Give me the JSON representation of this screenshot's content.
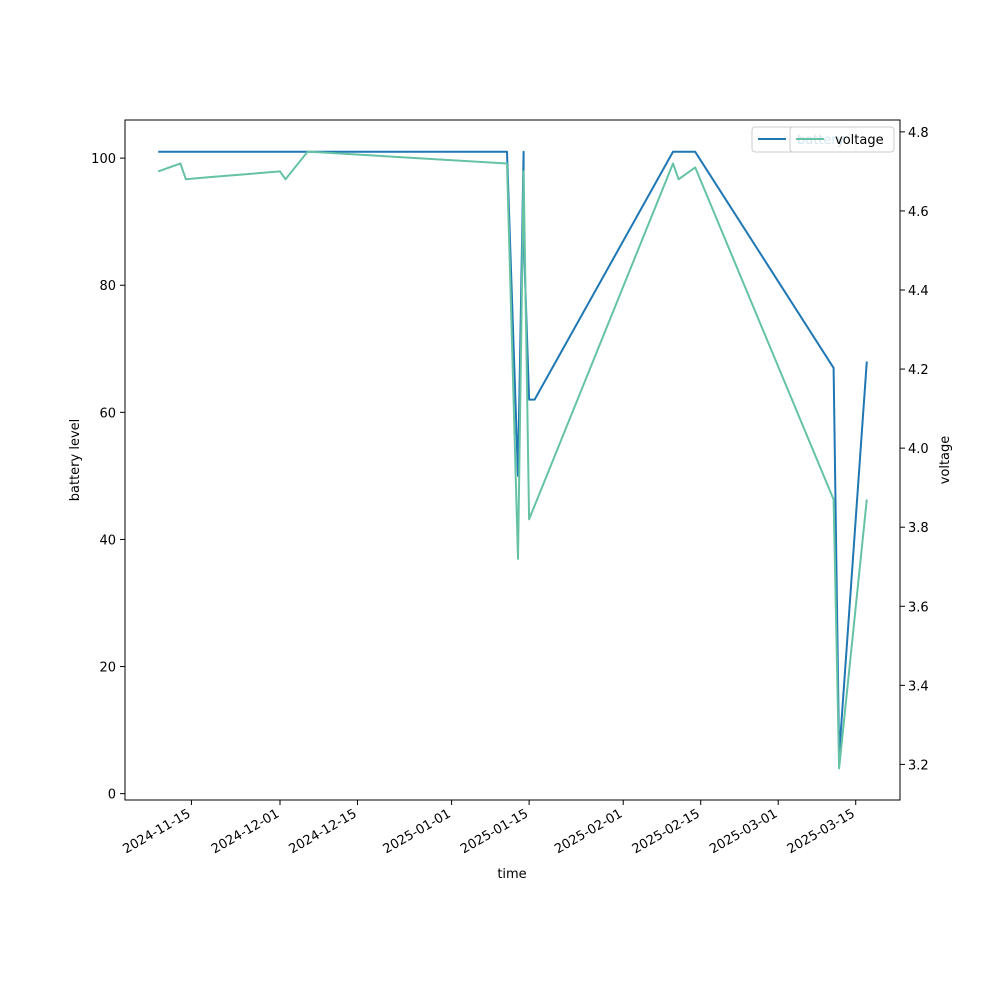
{
  "chart_data": {
    "type": "line",
    "title": "",
    "xlabel": "time",
    "ylabel": "battery level",
    "y2label": "voltage",
    "x_tick_labels": [
      "2024-11-15",
      "2024-12-01",
      "2024-12-15",
      "2025-01-01",
      "2025-01-15",
      "2025-02-01",
      "2025-02-15",
      "2025-03-01",
      "2025-03-15"
    ],
    "x_range": [
      "2024-11-03",
      "2025-03-23"
    ],
    "ylim": [
      -1,
      106
    ],
    "y_ticks": [
      0,
      20,
      40,
      60,
      80,
      100
    ],
    "y2lim": [
      3.11,
      4.83
    ],
    "y2_ticks": [
      3.2,
      3.4,
      3.6,
      3.8,
      4.0,
      4.2,
      4.4,
      4.6,
      4.8
    ],
    "legend_position": "upper right",
    "grid": false,
    "series": [
      {
        "name": "battery",
        "axis": "left",
        "color": "#1f77b4",
        "x": [
          "2024-11-09",
          "2025-01-11",
          "2025-01-13",
          "2025-01-14",
          "2025-01-14",
          "2025-01-15",
          "2025-01-16",
          "2025-02-10",
          "2025-02-11",
          "2025-02-14",
          "2025-03-11",
          "2025-03-12",
          "2025-03-17"
        ],
        "values": [
          101,
          101,
          50,
          101,
          88,
          62,
          62,
          101,
          101,
          101,
          67,
          6,
          68
        ]
      },
      {
        "name": "voltage",
        "axis": "right",
        "color": "#66c2a5",
        "x": [
          "2024-11-09",
          "2024-11-13",
          "2024-11-14",
          "2024-11-18",
          "2024-12-01",
          "2024-12-02",
          "2024-12-06",
          "2025-01-11",
          "2025-01-13",
          "2025-01-14",
          "2025-01-15",
          "2025-02-10",
          "2025-02-11",
          "2025-02-14",
          "2025-03-11",
          "2025-03-12",
          "2025-03-17"
        ],
        "values": [
          4.7,
          4.72,
          4.68,
          4.685,
          4.7,
          4.68,
          4.75,
          4.72,
          3.72,
          4.7,
          3.82,
          4.72,
          4.68,
          4.71,
          3.87,
          3.19,
          3.87
        ]
      }
    ]
  },
  "legend": {
    "battery_label": "battery",
    "voltage_label": "voltage"
  }
}
